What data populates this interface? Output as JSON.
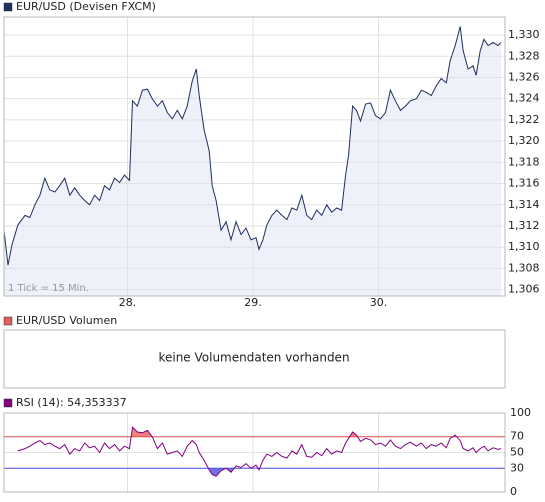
{
  "chart_data": [
    {
      "type": "area",
      "series": [
        {
          "name": "EUR/USD (Devisen FXCM)",
          "color": "#1f2f5f",
          "fill": "#eef0fa",
          "values": [
            1.3116,
            1.3083,
            1.3102,
            1.3121,
            1.313,
            1.3128,
            1.314,
            1.3149,
            1.3165,
            1.3154,
            1.3152,
            1.3158,
            1.3165,
            1.3149,
            1.3156,
            1.3149,
            1.3144,
            1.314,
            1.3149,
            1.3144,
            1.3158,
            1.3154,
            1.3165,
            1.3161,
            1.3168,
            1.3163,
            1.3238,
            1.3233,
            1.3248,
            1.3249,
            1.324,
            1.3233,
            1.3238,
            1.3227,
            1.3221,
            1.3229,
            1.3221,
            1.3233,
            1.3257,
            1.3268,
            1.3243,
            1.321,
            1.3191,
            1.3158,
            1.3144,
            1.3116,
            1.3124,
            1.3107,
            1.3124,
            1.3112,
            1.3118,
            1.3107,
            1.3109,
            1.3098,
            1.3107,
            1.3121,
            1.313,
            1.3135,
            1.313,
            1.3126,
            1.3137,
            1.3135,
            1.3149,
            1.313,
            1.3126,
            1.3135,
            1.313,
            1.314,
            1.3133,
            1.3137,
            1.3135,
            1.3168,
            1.3187,
            1.3233,
            1.3229,
            1.3219,
            1.3235,
            1.3236,
            1.3224,
            1.3221,
            1.3227,
            1.3248,
            1.3238,
            1.3229,
            1.3233,
            1.3238,
            1.324,
            1.3248,
            1.3246,
            1.3243,
            1.3252,
            1.3259,
            1.3255,
            1.3276,
            1.329,
            1.3308,
            1.3285,
            1.3268,
            1.3271,
            1.3262,
            1.3285,
            1.3296,
            1.329,
            1.3293,
            1.329,
            1.3293
          ]
        }
      ],
      "x": [
        27.016,
        27.048,
        27.079,
        27.127,
        27.183,
        27.222,
        27.262,
        27.302,
        27.341,
        27.381,
        27.421,
        27.46,
        27.5,
        27.54,
        27.579,
        27.619,
        27.659,
        27.698,
        27.738,
        27.778,
        27.817,
        27.857,
        27.897,
        27.937,
        27.976,
        28.016,
        28.04,
        28.079,
        28.119,
        28.159,
        28.198,
        28.238,
        28.278,
        28.317,
        28.357,
        28.397,
        28.437,
        28.476,
        28.516,
        28.548,
        28.571,
        28.611,
        28.651,
        28.675,
        28.706,
        28.746,
        28.786,
        28.825,
        28.865,
        28.905,
        28.944,
        28.984,
        29.024,
        29.048,
        29.079,
        29.111,
        29.151,
        29.19,
        29.23,
        29.27,
        29.31,
        29.349,
        29.389,
        29.429,
        29.468,
        29.508,
        29.548,
        29.587,
        29.627,
        29.667,
        29.706,
        29.738,
        29.762,
        29.794,
        29.825,
        29.857,
        29.897,
        29.937,
        29.976,
        30.016,
        30.056,
        30.095,
        30.135,
        30.175,
        30.214,
        30.254,
        30.302,
        30.341,
        30.381,
        30.421,
        30.46,
        30.5,
        30.54,
        30.571,
        30.611,
        30.651,
        30.675,
        30.714,
        30.754,
        30.778,
        30.81,
        30.841,
        30.873,
        30.913,
        30.952,
        30.976
      ],
      "xlim": [
        27.016,
        31.008
      ],
      "xticks": [
        {
          "value": 28,
          "label": "28."
        },
        {
          "value": 29,
          "label": "29."
        },
        {
          "value": 30,
          "label": "30."
        }
      ],
      "ylim": [
        1.3054,
        1.3317
      ],
      "yticks": [
        {
          "value": 1.306,
          "label": "1,306"
        },
        {
          "value": 1.308,
          "label": "1,308"
        },
        {
          "value": 1.31,
          "label": "1,310"
        },
        {
          "value": 1.312,
          "label": "1,312"
        },
        {
          "value": 1.314,
          "label": "1,314"
        },
        {
          "value": 1.316,
          "label": "1,316"
        },
        {
          "value": 1.318,
          "label": "1,318"
        },
        {
          "value": 1.32,
          "label": "1,320"
        },
        {
          "value": 1.322,
          "label": "1,322"
        },
        {
          "value": 1.324,
          "label": "1,324"
        },
        {
          "value": 1.326,
          "label": "1,326"
        },
        {
          "value": 1.328,
          "label": "1,328"
        },
        {
          "value": 1.33,
          "label": "1,330"
        }
      ],
      "annotation": "1 Tick = 15 Min.",
      "grid": true
    },
    {
      "type": "bar",
      "title": "EUR/USD Volumen",
      "color": "#e06060",
      "message": "keine Volumendaten vorhanden"
    },
    {
      "type": "line",
      "series": [
        {
          "name": "RSI (14): 54,353337",
          "color": "#800080",
          "values": [
            null,
            null,
            null,
            52,
            55,
            58,
            62,
            65,
            60,
            62,
            58,
            55,
            60,
            48,
            55,
            52,
            62,
            56,
            58,
            50,
            62,
            55,
            60,
            52,
            58,
            55,
            82,
            76,
            75,
            78,
            70,
            55,
            62,
            48,
            50,
            52,
            45,
            58,
            65,
            60,
            50,
            40,
            28,
            22,
            20,
            27,
            30,
            25,
            33,
            31,
            36,
            30,
            34,
            28,
            40,
            48,
            45,
            50,
            45,
            43,
            52,
            48,
            60,
            45,
            44,
            50,
            46,
            55,
            48,
            52,
            50,
            62,
            68,
            76,
            72,
            64,
            68,
            66,
            60,
            62,
            58,
            66,
            58,
            55,
            60,
            63,
            58,
            62,
            55,
            60,
            58,
            62,
            56,
            68,
            72,
            65,
            55,
            52,
            56,
            50,
            55,
            58,
            52,
            56,
            54,
            55
          ]
        }
      ],
      "x": [
        27.016,
        27.048,
        27.079,
        27.127,
        27.183,
        27.222,
        27.262,
        27.302,
        27.341,
        27.381,
        27.421,
        27.46,
        27.5,
        27.54,
        27.579,
        27.619,
        27.659,
        27.698,
        27.738,
        27.778,
        27.817,
        27.857,
        27.897,
        27.937,
        27.976,
        28.016,
        28.04,
        28.079,
        28.119,
        28.159,
        28.198,
        28.238,
        28.278,
        28.317,
        28.357,
        28.397,
        28.437,
        28.476,
        28.516,
        28.548,
        28.571,
        28.611,
        28.651,
        28.675,
        28.706,
        28.746,
        28.786,
        28.825,
        28.865,
        28.905,
        28.944,
        28.984,
        29.024,
        29.048,
        29.079,
        29.111,
        29.151,
        29.19,
        29.23,
        29.27,
        29.31,
        29.349,
        29.389,
        29.429,
        29.468,
        29.508,
        29.548,
        29.587,
        29.627,
        29.667,
        29.706,
        29.738,
        29.762,
        29.794,
        29.825,
        29.857,
        29.897,
        29.937,
        29.976,
        30.016,
        30.056,
        30.095,
        30.135,
        30.175,
        30.214,
        30.254,
        30.302,
        30.341,
        30.381,
        30.421,
        30.46,
        30.5,
        30.54,
        30.571,
        30.611,
        30.651,
        30.675,
        30.714,
        30.754,
        30.778,
        30.81,
        30.841,
        30.873,
        30.913,
        30.952,
        30.976
      ],
      "xlim": [
        27.016,
        31.008
      ],
      "xticks": [
        28,
        29,
        30
      ],
      "ylim": [
        0,
        100
      ],
      "yticks": [
        0,
        30,
        50,
        70,
        100
      ],
      "upper": {
        "value": 70,
        "color": "#e05050",
        "fill": "#f08080"
      },
      "lower": {
        "value": 30,
        "color": "#5050e0",
        "fill": "#7070e0"
      },
      "grid": true
    }
  ]
}
